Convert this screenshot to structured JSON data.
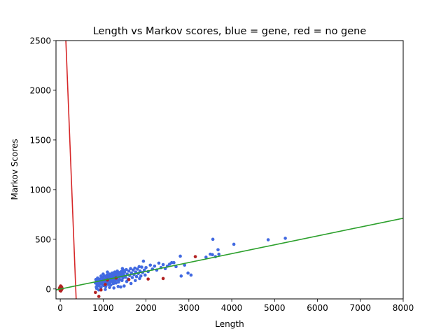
{
  "chart_data": {
    "type": "scatter",
    "title": "Length vs Markov scores, blue = gene, red = no gene",
    "xlabel": "Length",
    "ylabel": "Markov Scores",
    "xlim": [
      -100,
      8000
    ],
    "ylim": [
      -100,
      2500
    ],
    "xticks": [
      0,
      1000,
      2000,
      3000,
      4000,
      5000,
      6000,
      7000,
      8000
    ],
    "yticks": [
      0,
      500,
      1000,
      1500,
      2000,
      2500
    ],
    "grid": false,
    "legend": "none",
    "series": [
      {
        "color": "#4169e1",
        "points": [
          [
            820,
            60
          ],
          [
            830,
            95
          ],
          [
            840,
            20
          ],
          [
            850,
            75
          ],
          [
            860,
            40
          ],
          [
            870,
            110
          ],
          [
            880,
            55
          ],
          [
            890,
            85
          ],
          [
            900,
            30
          ],
          [
            910,
            70
          ],
          [
            920,
            100
          ],
          [
            930,
            50
          ],
          [
            940,
            90
          ],
          [
            950,
            15
          ],
          [
            960,
            65
          ],
          [
            970,
            120
          ],
          [
            980,
            45
          ],
          [
            990,
            80
          ],
          [
            1000,
            105
          ],
          [
            1010,
            35
          ],
          [
            1020,
            75
          ],
          [
            1030,
            130
          ],
          [
            1040,
            55
          ],
          [
            1050,
            95
          ],
          [
            1060,
            25
          ],
          [
            1070,
            115
          ],
          [
            1080,
            70
          ],
          [
            1090,
            140
          ],
          [
            1100,
            60
          ],
          [
            1110,
            100
          ],
          [
            1120,
            45
          ],
          [
            1130,
            125
          ],
          [
            1140,
            85
          ],
          [
            1150,
            150
          ],
          [
            1160,
            65
          ],
          [
            1170,
            110
          ],
          [
            1180,
            40
          ],
          [
            1190,
            135
          ],
          [
            1200,
            90
          ],
          [
            1210,
            160
          ],
          [
            1220,
            75
          ],
          [
            1230,
            120
          ],
          [
            1240,
            55
          ],
          [
            1250,
            145
          ],
          [
            1260,
            100
          ],
          [
            1270,
            170
          ],
          [
            1280,
            80
          ],
          [
            1290,
            130
          ],
          [
            1300,
            60
          ],
          [
            1310,
            155
          ],
          [
            1320,
            110
          ],
          [
            1330,
            180
          ],
          [
            1340,
            90
          ],
          [
            1350,
            140
          ],
          [
            1360,
            70
          ],
          [
            1370,
            165
          ],
          [
            1380,
            120
          ],
          [
            1390,
            95
          ],
          [
            1400,
            150
          ],
          [
            1410,
            20
          ],
          [
            1420,
            175
          ],
          [
            1430,
            130
          ],
          [
            1440,
            85
          ],
          [
            1450,
            160
          ],
          [
            1460,
            110
          ],
          [
            1470,
            190
          ],
          [
            1480,
            140
          ],
          [
            1490,
            30
          ],
          [
            1500,
            170
          ],
          [
            1520,
            120
          ],
          [
            1540,
            195
          ],
          [
            1560,
            150
          ],
          [
            1580,
            100
          ],
          [
            1600,
            180
          ],
          [
            1620,
            135
          ],
          [
            1640,
            205
          ],
          [
            1660,
            160
          ],
          [
            1680,
            115
          ],
          [
            1700,
            190
          ],
          [
            1720,
            145
          ],
          [
            1740,
            210
          ],
          [
            1760,
            170
          ],
          [
            1780,
            125
          ],
          [
            1800,
            200
          ],
          [
            1820,
            155
          ],
          [
            1840,
            225
          ],
          [
            1860,
            180
          ],
          [
            1880,
            130
          ],
          [
            1900,
            220
          ],
          [
            1920,
            165
          ],
          [
            1940,
            280
          ],
          [
            1960,
            190
          ],
          [
            1980,
            140
          ],
          [
            2000,
            215
          ],
          [
            2050,
            175
          ],
          [
            2100,
            240
          ],
          [
            2150,
            200
          ],
          [
            2200,
            230
          ],
          [
            2250,
            190
          ],
          [
            2300,
            260
          ],
          [
            2350,
            215
          ],
          [
            2400,
            245
          ],
          [
            2450,
            205
          ],
          [
            2500,
            230
          ],
          [
            2550,
            250
          ],
          [
            2600,
            265
          ],
          [
            2650,
            265
          ],
          [
            2700,
            225
          ],
          [
            2800,
            330
          ],
          [
            2820,
            130
          ],
          [
            2900,
            240
          ],
          [
            2980,
            160
          ],
          [
            3050,
            140
          ],
          [
            3400,
            320
          ],
          [
            3500,
            350
          ],
          [
            3550,
            345
          ],
          [
            3560,
            500
          ],
          [
            3620,
            325
          ],
          [
            3680,
            395
          ],
          [
            3700,
            350
          ],
          [
            4050,
            450
          ],
          [
            4850,
            495
          ],
          [
            5250,
            510
          ],
          [
            850,
            5
          ],
          [
            900,
            -10
          ],
          [
            950,
            130
          ],
          [
            1000,
            150
          ],
          [
            1050,
            -5
          ],
          [
            1100,
            170
          ],
          [
            1150,
            15
          ],
          [
            1250,
            10
          ],
          [
            1350,
            25
          ],
          [
            1450,
            205
          ],
          [
            1550,
            75
          ],
          [
            1650,
            55
          ],
          [
            1750,
            85
          ],
          [
            1850,
            105
          ]
        ]
      },
      {
        "color": "#b22222",
        "points": [
          [
            -20,
            5
          ],
          [
            -10,
            15
          ],
          [
            0,
            0
          ],
          [
            5,
            20
          ],
          [
            10,
            -5
          ],
          [
            15,
            10
          ],
          [
            20,
            25
          ],
          [
            25,
            -10
          ],
          [
            30,
            5
          ],
          [
            35,
            15
          ],
          [
            -5,
            -15
          ],
          [
            40,
            0
          ],
          [
            8,
            30
          ],
          [
            12,
            -20
          ],
          [
            820,
            -35
          ],
          [
            900,
            -75
          ],
          [
            950,
            -10
          ],
          [
            1050,
            45
          ],
          [
            1100,
            90
          ],
          [
            1300,
            110
          ],
          [
            1600,
            95
          ],
          [
            2050,
            100
          ],
          [
            2400,
            105
          ],
          [
            3150,
            325
          ]
        ]
      }
    ],
    "lines": [
      {
        "color": "#d62728",
        "points": [
          [
            130,
            2500
          ],
          [
            370,
            -100
          ]
        ]
      },
      {
        "color": "#2ca02c",
        "points": [
          [
            -100,
            -10
          ],
          [
            8000,
            712
          ]
        ]
      }
    ]
  }
}
